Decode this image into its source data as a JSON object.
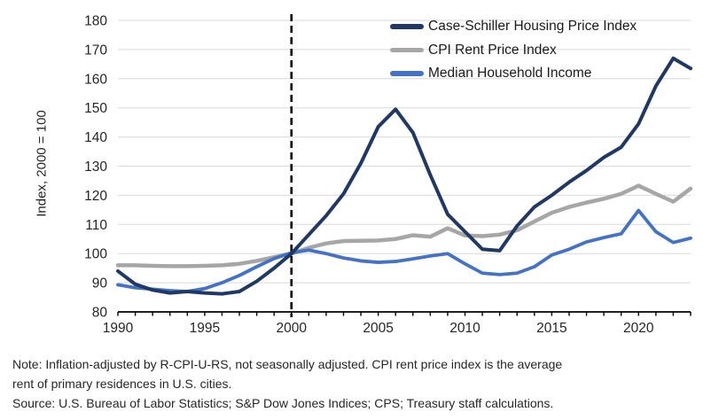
{
  "figure": {
    "y_axis_title": "Index, 2000 = 100",
    "note_line1": "Note: Inflation-adjusted by R-CPI-U-RS, not seasonally adjusted. CPI rent price index is the average",
    "note_line2": "rent of primary residences in U.S. cities.",
    "source_line": "Source: U.S. Bureau of Labor Statistics; S&P Dow Jones Indices; CPS; Treasury staff calculations."
  },
  "chart_data": {
    "type": "line",
    "title": "",
    "xlabel": "",
    "ylabel": "Index, 2000 = 100",
    "ylim": [
      80,
      180
    ],
    "xlim": [
      1990,
      2023
    ],
    "y_ticks": [
      80,
      90,
      100,
      110,
      120,
      130,
      140,
      150,
      160,
      170,
      180
    ],
    "x_ticks": [
      1990,
      1995,
      2000,
      2005,
      2010,
      2015,
      2020
    ],
    "grid": "horizontal",
    "legend_position": "top-right-inside",
    "reference_line": {
      "x": 2000,
      "style": "dashed",
      "color": "#000000"
    },
    "style": {
      "grid_color": "#D9D9D9",
      "axis_color": "#000000"
    },
    "x": [
      1990,
      1991,
      1992,
      1993,
      1994,
      1995,
      1996,
      1997,
      1998,
      1999,
      2000,
      2001,
      2002,
      2003,
      2004,
      2005,
      2006,
      2007,
      2008,
      2009,
      2010,
      2011,
      2012,
      2013,
      2014,
      2015,
      2016,
      2017,
      2018,
      2019,
      2020,
      2021,
      2022,
      2023
    ],
    "series": [
      {
        "name": "Case-Schiller Housing Price Index",
        "color": "#1F3864",
        "values": [
          94,
          89.5,
          87.5,
          86.5,
          87,
          86.5,
          86.2,
          87,
          90.5,
          95,
          100,
          106.5,
          113,
          120.5,
          131,
          143.5,
          149.5,
          141.5,
          127,
          113.5,
          107.5,
          101.5,
          101,
          109.5,
          116,
          120,
          124.5,
          128.5,
          133,
          136.5,
          144.5,
          157.5,
          167,
          163.5
        ]
      },
      {
        "name": "CPI Rent Price Index",
        "color": "#A6A6A6",
        "values": [
          96,
          96,
          95.8,
          95.7,
          95.7,
          95.8,
          96,
          96.5,
          97.5,
          98.8,
          100,
          102,
          103.5,
          104.3,
          104.4,
          104.5,
          105,
          106.3,
          105.8,
          108.7,
          106.2,
          106,
          106.5,
          108,
          111,
          114,
          116,
          117.5,
          118.8,
          120.5,
          123.3,
          120.5,
          117.8,
          122.3
        ]
      },
      {
        "name": "Median Household Income",
        "color": "#4472C4",
        "values": [
          89.3,
          88.3,
          87.8,
          87.3,
          87,
          88,
          90,
          92.5,
          95.5,
          98.3,
          100.3,
          101.2,
          100,
          98.5,
          97.5,
          97,
          97.3,
          98.2,
          99.2,
          100,
          96.5,
          93.3,
          92.8,
          93.3,
          95.5,
          99.5,
          101.5,
          104,
          105.5,
          106.8,
          114.8,
          107.5,
          103.8,
          105.3
        ]
      }
    ]
  }
}
